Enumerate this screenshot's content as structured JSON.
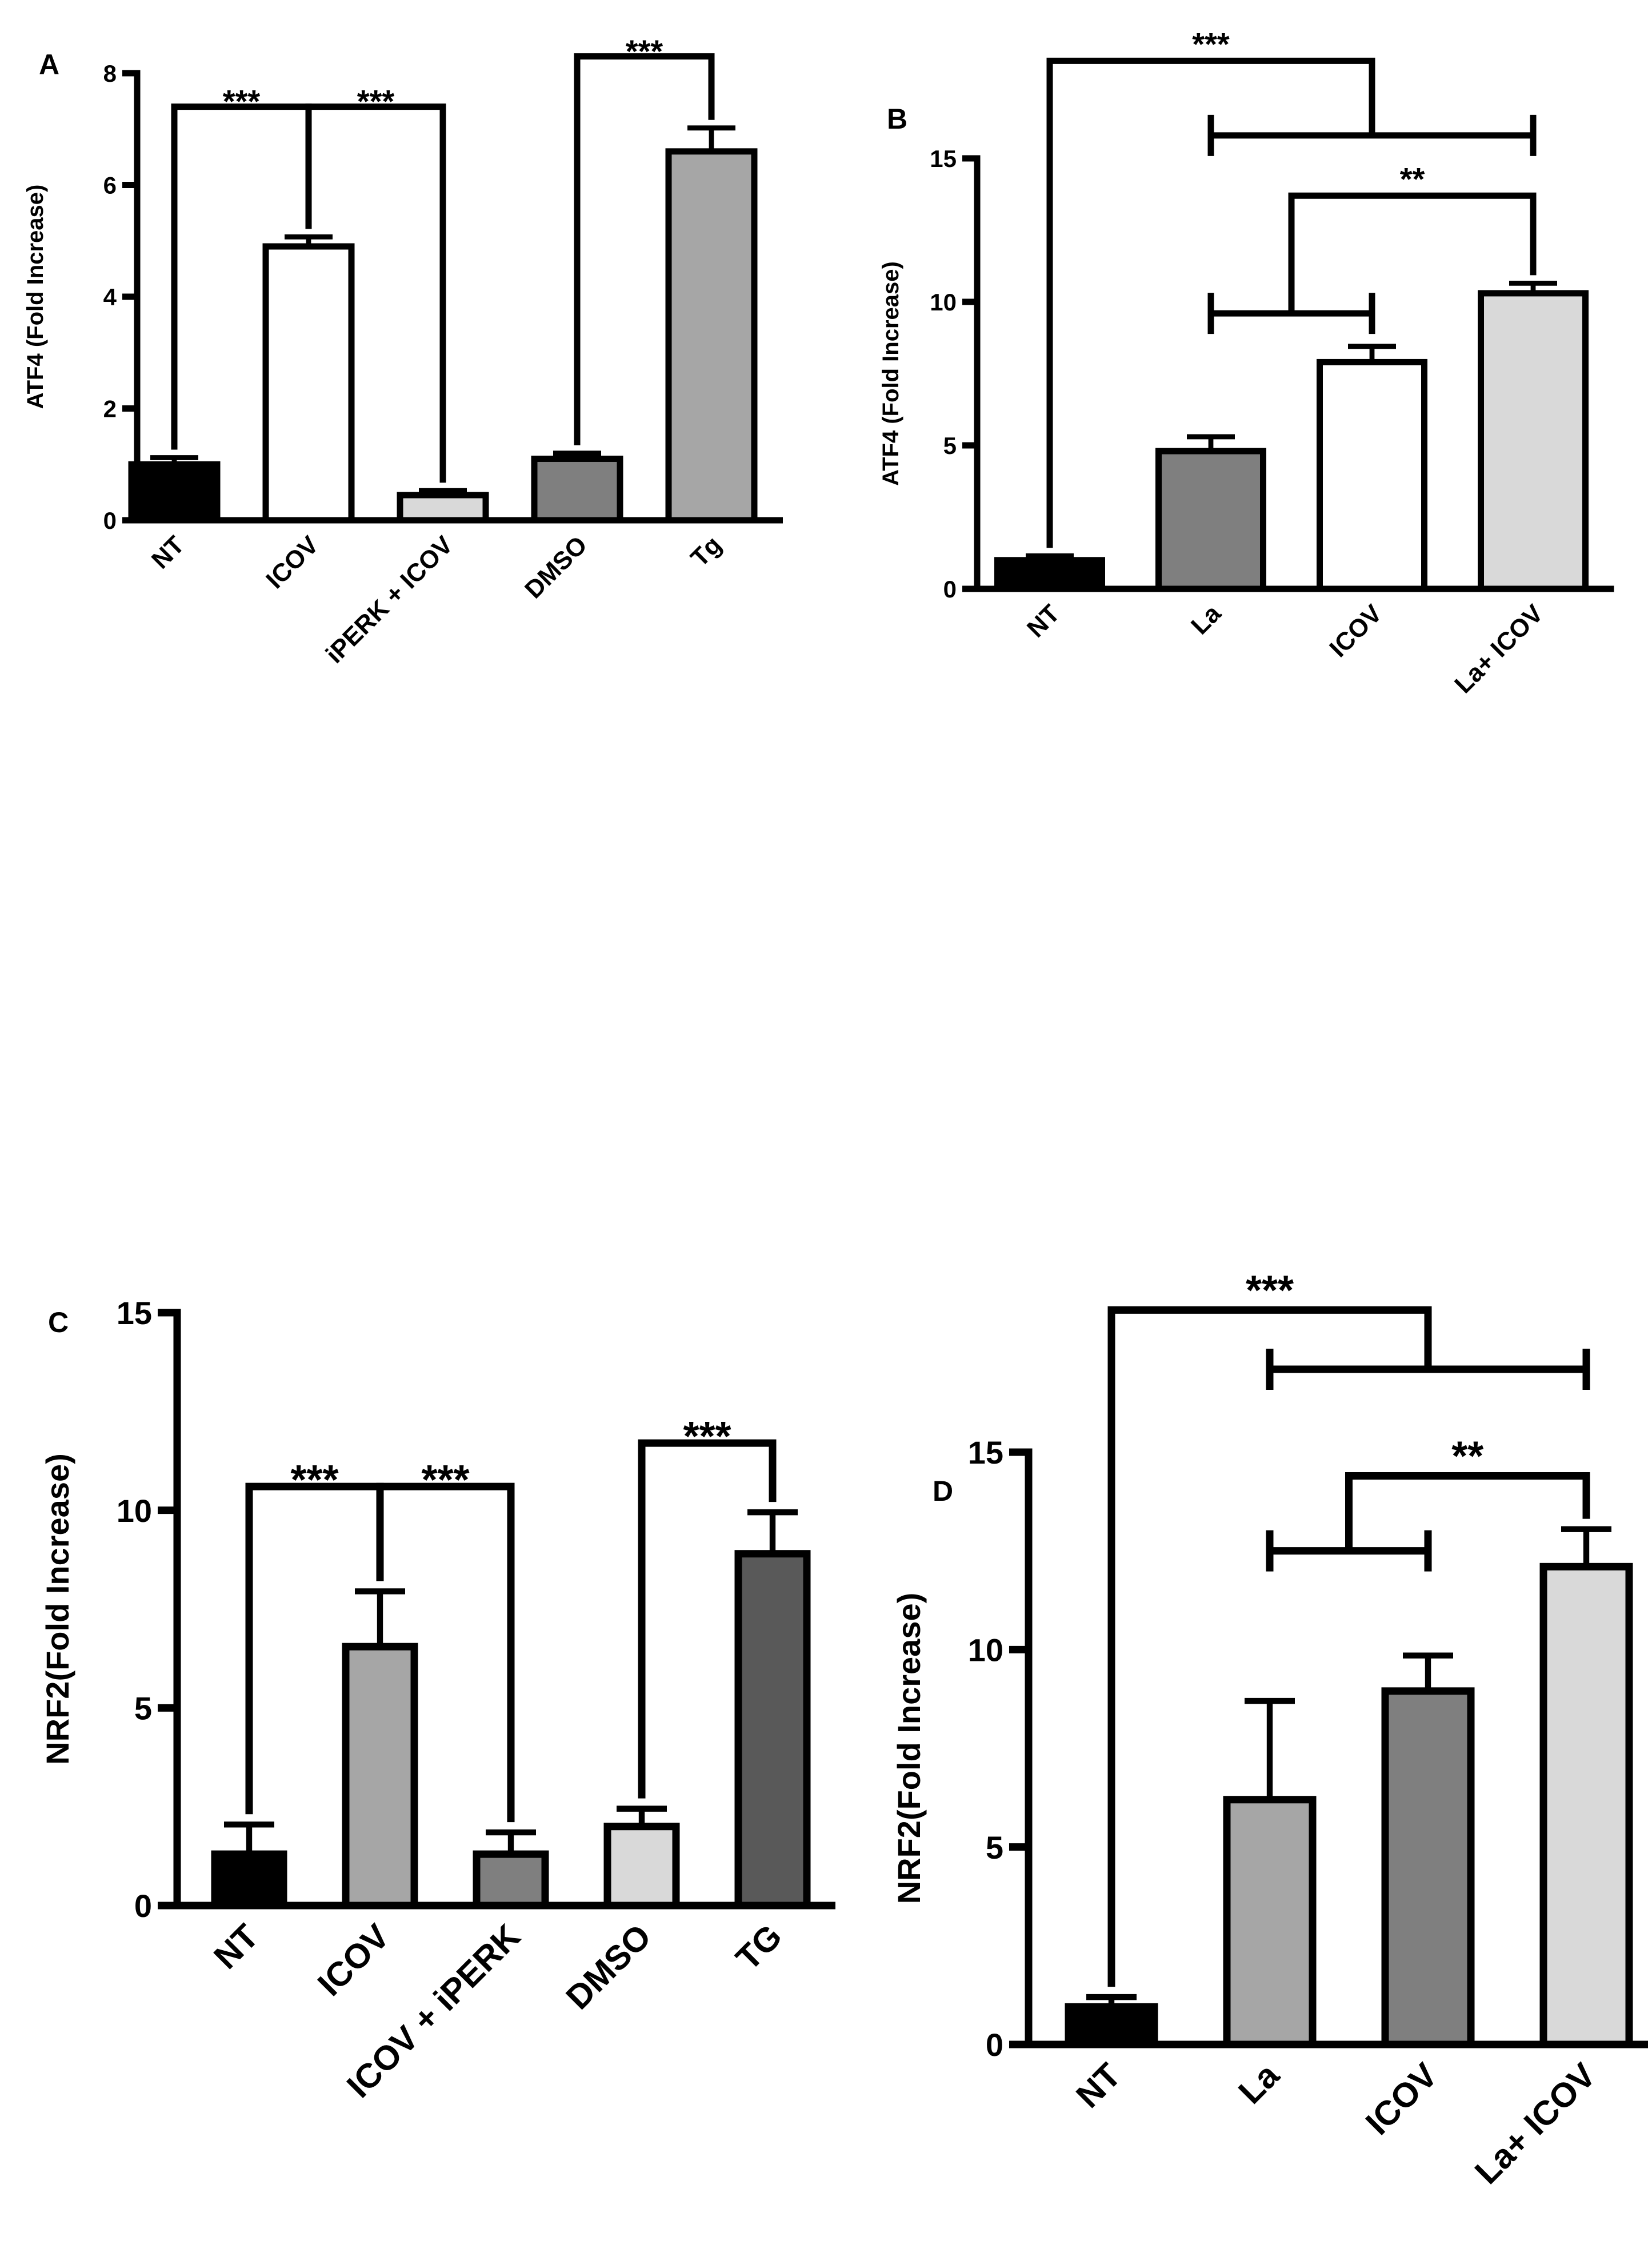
{
  "chart_data": [
    {
      "id": "A",
      "type": "bar",
      "panel_label": "A",
      "ylabel": "ATF4 (Fold Increase)",
      "ylim": [
        0,
        8
      ],
      "yticks": [
        0,
        2,
        4,
        6,
        8
      ],
      "tick_labels": [
        "0",
        "2",
        "4",
        "6",
        "8"
      ],
      "categories": [
        "NT",
        "ICOV",
        "iPERK + ICOV",
        "DMSO",
        "Tg"
      ],
      "values": [
        1.0,
        4.9,
        0.45,
        1.1,
        6.6
      ],
      "errors": [
        0.12,
        0.17,
        0.08,
        0.1,
        0.42
      ],
      "colors": [
        "#000000",
        "#ffffff",
        "#d9d9d9",
        "#7f7f7f",
        "#a6a6a6"
      ],
      "significance": [
        {
          "type": "pair",
          "from": 0,
          "to": 1,
          "label": "***",
          "level": 7.4
        },
        {
          "type": "pair",
          "from": 1,
          "to": 2,
          "label": "***",
          "level": 7.4
        },
        {
          "type": "pair",
          "from": 3,
          "to": 4,
          "label": "***",
          "level": 8.3
        }
      ]
    },
    {
      "id": "B",
      "type": "bar",
      "panel_label": "B",
      "ylabel": "ATF4 (Fold Increase)",
      "ylim": [
        0,
        15
      ],
      "yticks": [
        0,
        5,
        10,
        15
      ],
      "tick_labels": [
        "0",
        "5",
        "10",
        "15"
      ],
      "categories": [
        "NT",
        "La",
        "ICOV",
        "La+ ICOV"
      ],
      "values": [
        1.0,
        4.8,
        7.9,
        10.3
      ],
      "errors": [
        0.15,
        0.5,
        0.55,
        0.35
      ],
      "colors": [
        "#000000",
        "#7f7f7f",
        "#ffffff",
        "#d9d9d9"
      ],
      "significance": [
        {
          "type": "nested",
          "single": 0,
          "from": 1,
          "to": 3,
          "label": "***",
          "level": 18.4,
          "inner_level": 15.8
        },
        {
          "type": "nested",
          "single": 3,
          "from": 1,
          "to": 2,
          "label": "**",
          "level": 13.7,
          "inner_level": 9.6
        }
      ]
    },
    {
      "id": "C",
      "type": "bar",
      "panel_label": "C",
      "ylabel": "NRF2(Fold Increase)",
      "ylim": [
        0,
        15
      ],
      "yticks": [
        0,
        5,
        10,
        15
      ],
      "tick_labels": [
        "0",
        "5",
        "10",
        "15"
      ],
      "categories": [
        "NT",
        "ICOV",
        "ICOV + iPERK",
        "DMSO",
        "TG"
      ],
      "values": [
        1.3,
        6.55,
        1.3,
        2.0,
        8.9
      ],
      "errors": [
        0.75,
        1.4,
        0.55,
        0.45,
        1.05
      ],
      "colors": [
        "#000000",
        "#a6a6a6",
        "#7f7f7f",
        "#d9d9d9",
        "#595959"
      ],
      "significance": [
        {
          "type": "pair",
          "from": 0,
          "to": 1,
          "label": "***",
          "level": 10.6
        },
        {
          "type": "pair",
          "from": 1,
          "to": 2,
          "label": "***",
          "level": 10.6
        },
        {
          "type": "pair",
          "from": 3,
          "to": 4,
          "label": "***",
          "level": 11.7
        }
      ]
    },
    {
      "id": "D",
      "type": "bar",
      "panel_label": "D",
      "ylabel": "NRF2(Fold Increase)",
      "ylim": [
        0,
        15
      ],
      "yticks": [
        0,
        5,
        10,
        15
      ],
      "tick_labels": [
        "0",
        "5",
        "10",
        "15"
      ],
      "categories": [
        "NT",
        "La",
        "ICOV",
        "La+ ICOV"
      ],
      "values": [
        0.95,
        6.2,
        8.95,
        12.1
      ],
      "errors": [
        0.25,
        2.5,
        0.9,
        0.95
      ],
      "colors": [
        "#000000",
        "#a6a6a6",
        "#7f7f7f",
        "#d9d9d9"
      ],
      "significance": [
        {
          "type": "nested",
          "single": 0,
          "from": 1,
          "to": 3,
          "label": "***",
          "level": 18.6,
          "inner_level": 17.1
        },
        {
          "type": "nested",
          "single": 3,
          "from": 1,
          "to": 2,
          "label": "**",
          "level": 14.4,
          "inner_level": 12.5
        }
      ]
    }
  ]
}
